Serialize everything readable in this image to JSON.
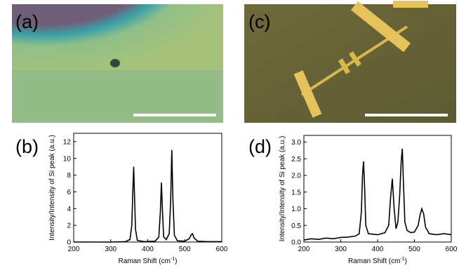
{
  "panels": {
    "a": "(a)",
    "b": "(b)",
    "c": "(c)",
    "d": "(d)"
  },
  "chart_data": [
    {
      "type": "line",
      "x_label": "Raman Shift (cm",
      "x_label_sup": "-1",
      "x_label_end": ")",
      "y_label": "Intensity/Intensity of Si peak (a.u.)",
      "color": "#000000",
      "xlim": [
        200,
        600
      ],
      "xticks": [
        200,
        300,
        400,
        500,
        600
      ],
      "ylim": [
        0,
        13
      ],
      "yticks": [
        0,
        2,
        4,
        6,
        8,
        10,
        12
      ],
      "x": [
        200,
        250,
        300,
        340,
        352,
        357,
        360,
        362,
        364,
        367,
        372,
        390,
        420,
        430,
        434,
        437,
        440,
        443,
        450,
        458,
        462,
        465,
        468,
        472,
        480,
        500,
        512,
        518,
        521,
        525,
        535,
        560,
        600
      ],
      "values": [
        0,
        0,
        0,
        0.05,
        0.3,
        2,
        6.5,
        9,
        6,
        1.5,
        0.2,
        0.05,
        0.1,
        0.6,
        3.5,
        7.1,
        3.5,
        0.6,
        0.3,
        1,
        5,
        11,
        5,
        0.8,
        0.15,
        0.1,
        0.4,
        0.9,
        1.0,
        0.5,
        0.1,
        0.05,
        0.05
      ]
    },
    {
      "type": "line",
      "x_label": "Raman Shift (cm",
      "x_label_sup": "-1",
      "x_label_end": ")",
      "y_label": "Intensity/Intensity of Si peak (a.u.)",
      "color": "#000000",
      "xlim": [
        200,
        600
      ],
      "xticks": [
        200,
        300,
        400,
        500,
        600
      ],
      "ylim": [
        0,
        3.2
      ],
      "yticks": [
        {
          "value": 0,
          "label": "0.0"
        },
        {
          "value": 0.5,
          "label": "0.5"
        },
        {
          "value": 1,
          "label": "1.0"
        },
        {
          "value": 1.5,
          "label": "1.5"
        },
        {
          "value": 2,
          "label": "2.0"
        },
        {
          "value": 2.5,
          "label": "2.5"
        },
        {
          "value": 3,
          "label": "3.0"
        }
      ],
      "x": [
        200,
        220,
        240,
        260,
        280,
        300,
        320,
        340,
        350,
        356,
        359,
        362,
        365,
        368,
        375,
        400,
        420,
        430,
        435,
        440,
        445,
        450,
        455,
        460,
        464,
        467,
        470,
        474,
        480,
        490,
        500,
        510,
        515,
        520,
        525,
        530,
        540,
        560,
        580,
        600
      ],
      "values": [
        0.06,
        0.1,
        0.08,
        0.12,
        0.1,
        0.14,
        0.15,
        0.18,
        0.25,
        0.9,
        2.0,
        2.42,
        1.6,
        0.5,
        0.25,
        0.22,
        0.28,
        0.5,
        1.3,
        1.9,
        1.0,
        0.4,
        0.6,
        1.4,
        2.4,
        2.8,
        1.8,
        0.6,
        0.35,
        0.28,
        0.3,
        0.5,
        0.8,
        1.0,
        0.85,
        0.45,
        0.25,
        0.22,
        0.25,
        0.22
      ]
    }
  ]
}
